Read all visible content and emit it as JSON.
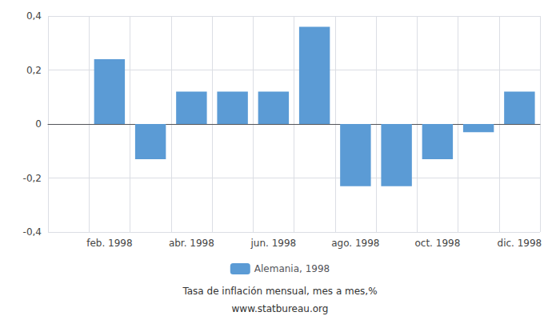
{
  "chart_data": {
    "type": "bar",
    "categories": [
      null,
      "feb. 1998",
      null,
      "abr. 1998",
      null,
      "jun. 1998",
      null,
      "ago. 1998",
      null,
      "oct. 1998",
      null,
      "dic. 1998"
    ],
    "series": [
      {
        "name": "Alemania, 1998",
        "color": "#5B9BD5",
        "values": [
          0.0,
          0.24,
          -0.13,
          0.12,
          0.12,
          0.12,
          0.36,
          -0.23,
          -0.23,
          -0.13,
          -0.03,
          0.12
        ]
      }
    ],
    "ylim": [
      -0.4,
      0.4
    ],
    "yticks": [
      {
        "value": -0.4,
        "label": "-0,4"
      },
      {
        "value": -0.2,
        "label": "-0,2"
      },
      0,
      {
        "value": 0.2,
        "label": "0,2"
      },
      {
        "value": 0.4,
        "label": "0,4"
      }
    ],
    "grid": true,
    "legend": "bottom",
    "annotations": [
      "Tasa de inflación mensual, mes a mes,%",
      "www.statbureau.org"
    ]
  }
}
